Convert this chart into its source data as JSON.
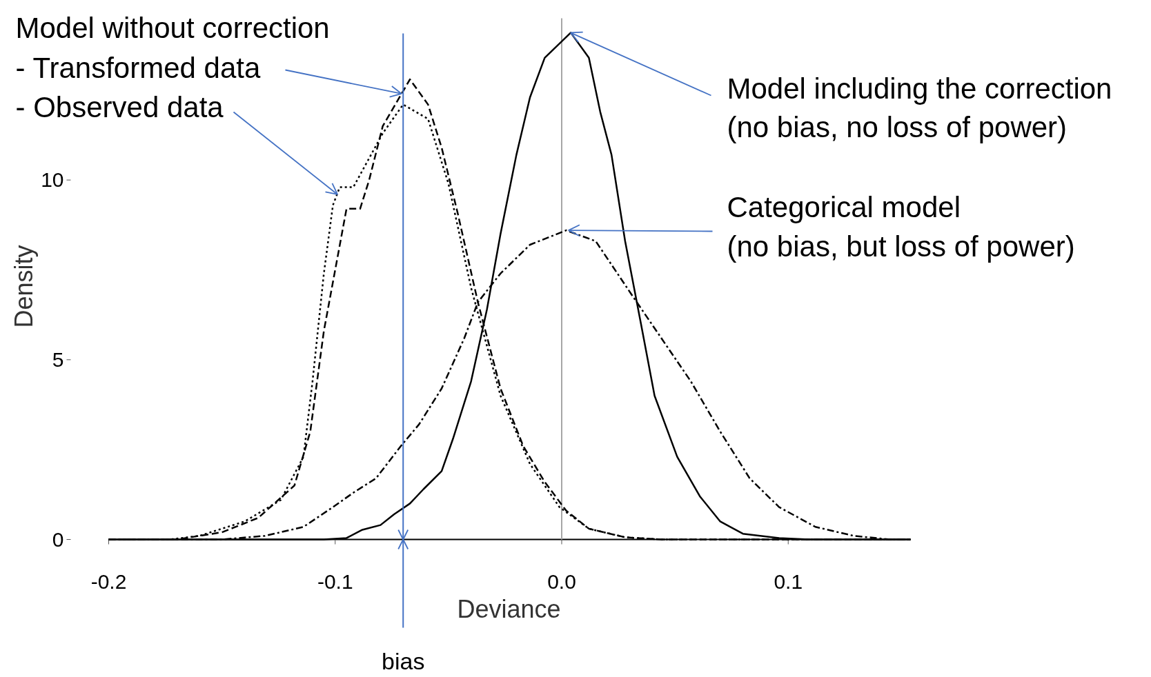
{
  "chart_data": {
    "type": "line",
    "xlabel": "Deviance",
    "ylabel": "Density",
    "xlim": [
      -0.2,
      0.154
    ],
    "ylim": [
      0,
      14.5
    ],
    "xticks": [
      -0.2,
      -0.1,
      {
        "value": 0,
        "label": "0.0"
      },
      0.1
    ],
    "yticks": [
      0,
      5,
      10
    ],
    "grid": false,
    "series": [
      {
        "color": "#000000",
        "line_style": "dashed",
        "x": [
          -0.2,
          -0.17,
          -0.15,
          -0.134,
          -0.118,
          -0.111,
          -0.105,
          -0.095,
          -0.089,
          -0.085,
          -0.079,
          -0.067,
          -0.059,
          -0.053,
          -0.046,
          -0.037,
          -0.027,
          -0.017,
          -0.0075,
          0.002,
          0.012,
          0.028,
          0.044,
          0.154
        ],
        "values": [
          0,
          0,
          0.2,
          0.6,
          1.5,
          3.0,
          5.8,
          9.2,
          9.2,
          10.0,
          11.5,
          12.8,
          12.1,
          10.9,
          9.1,
          6.6,
          4.2,
          2.6,
          1.6,
          0.8,
          0.3,
          0.06,
          0,
          0
        ]
      },
      {
        "color": "#000000",
        "line_style": "dotted",
        "x": [
          -0.2,
          -0.173,
          -0.16,
          -0.14,
          -0.124,
          -0.114,
          -0.11,
          -0.105,
          -0.101,
          -0.098,
          -0.092,
          -0.079,
          -0.07,
          -0.059,
          -0.05,
          -0.04,
          -0.027,
          -0.014,
          -0.001,
          0.012,
          0.028,
          0.044,
          0.154
        ],
        "values": [
          0,
          0,
          0.1,
          0.5,
          1.1,
          2.3,
          4.4,
          7.4,
          9.3,
          9.8,
          9.8,
          11.3,
          12.1,
          11.7,
          9.9,
          7.0,
          4.0,
          2.1,
          0.9,
          0.3,
          0.06,
          0,
          0
        ]
      },
      {
        "color": "#000000",
        "line_style": "solid",
        "x": [
          -0.2,
          -0.105,
          -0.095,
          -0.088,
          -0.08,
          -0.074,
          -0.067,
          -0.061,
          -0.053,
          -0.048,
          -0.04,
          -0.033,
          -0.027,
          -0.02,
          -0.014,
          -0.0075,
          0.004,
          0.012,
          0.017,
          0.022,
          0.028,
          0.035,
          0.041,
          0.051,
          0.061,
          0.07,
          0.08,
          0.096,
          0.109,
          0.154
        ],
        "values": [
          0,
          0,
          0.04,
          0.27,
          0.4,
          0.7,
          1.0,
          1.4,
          1.9,
          2.8,
          4.4,
          6.4,
          8.5,
          10.7,
          12.3,
          13.4,
          14.1,
          13.4,
          11.9,
          10.7,
          8.3,
          6.0,
          4.0,
          2.3,
          1.2,
          0.5,
          0.16,
          0.04,
          0,
          0
        ]
      },
      {
        "color": "#000000",
        "line_style": "dashdot",
        "x": [
          -0.2,
          -0.15,
          -0.131,
          -0.114,
          -0.101,
          -0.092,
          -0.082,
          -0.071,
          -0.063,
          -0.053,
          -0.043,
          -0.037,
          -0.027,
          -0.014,
          0.002,
          0.015,
          0.031,
          0.044,
          0.057,
          0.07,
          0.083,
          0.096,
          0.112,
          0.129,
          0.145,
          0.154
        ],
        "values": [
          0,
          0,
          0.1,
          0.35,
          0.9,
          1.3,
          1.7,
          2.6,
          3.2,
          4.2,
          5.6,
          6.6,
          7.4,
          8.2,
          8.6,
          8.3,
          6.8,
          5.6,
          4.4,
          3.0,
          1.7,
          0.9,
          0.35,
          0.1,
          0,
          0
        ]
      }
    ],
    "ref_lines": [
      {
        "axis": "x",
        "value": -0.07,
        "label": "bias",
        "color": "#4472c4"
      },
      {
        "axis": "x",
        "value": 0,
        "color": "#a6a6a6"
      }
    ],
    "annotations": [
      "Model without correction",
      {
        "text": "- Transformed data",
        "x": -0.0707,
        "y": 12.4
      },
      {
        "text": "- Observed data",
        "x": -0.099,
        "y": 9.6
      },
      {
        "text": "Model including the correction",
        "x": 0.0039,
        "y": 14.1
      },
      "(no bias, no loss of power)",
      {
        "text": "Categorical model",
        "x": 0.003,
        "y": 8.6
      },
      "(no bias, but loss of power)"
    ]
  }
}
